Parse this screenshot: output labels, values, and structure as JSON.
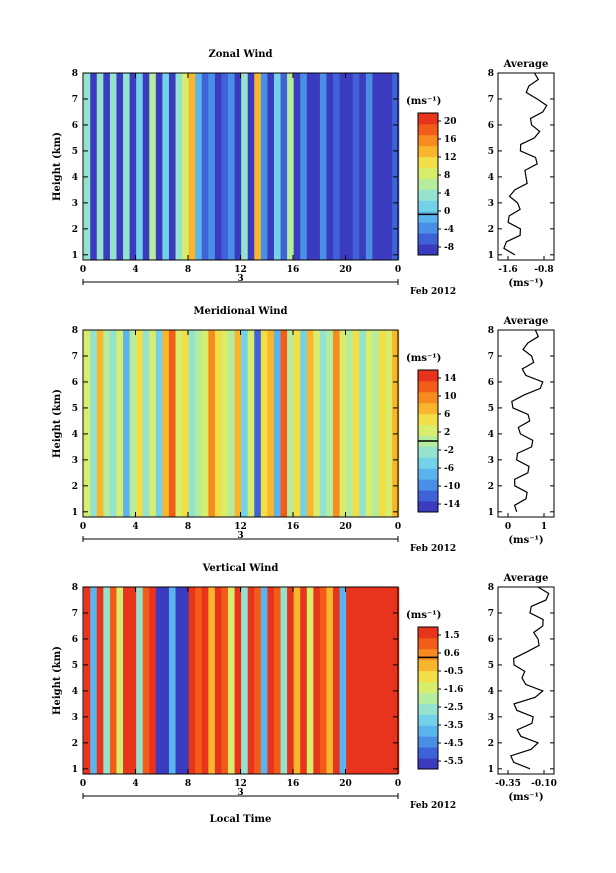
{
  "colorscale": [
    "#3b3bbf",
    "#3f62d8",
    "#4a8fe6",
    "#5ab4ee",
    "#73d2e8",
    "#93e3cf",
    "#b6ec9e",
    "#d9ed6c",
    "#f3de45",
    "#f9b62c",
    "#f88b1f",
    "#f35c18",
    "#e8341c"
  ],
  "date_label": "Feb 2012",
  "date_day": "3",
  "x_axis_label": "Local Time",
  "panels": [
    {
      "title": "Zonal Wind",
      "ylabel": "Height (km)",
      "unit": "(ms⁻¹)",
      "colorbar_ticks": [
        "20",
        "16",
        "12",
        "8",
        "4",
        "0",
        "-4",
        "-8"
      ],
      "x_ticks": [
        "0",
        "4",
        "8",
        "12",
        "16",
        "20",
        "0"
      ],
      "y_ticks": [
        "1",
        "2",
        "3",
        "4",
        "5",
        "6",
        "7",
        "8"
      ],
      "average": {
        "title": "Average",
        "xlabel": "(ms⁻¹)",
        "x_ticks": [
          "-1.6",
          "-0.8"
        ]
      }
    },
    {
      "title": "Meridional Wind",
      "ylabel": "Height (km)",
      "unit": "(ms⁻¹)",
      "colorbar_ticks": [
        "14",
        "10",
        "6",
        "2",
        "-2",
        "-6",
        "-10",
        "-14"
      ],
      "x_ticks": [
        "0",
        "4",
        "8",
        "12",
        "16",
        "20",
        "0"
      ],
      "y_ticks": [
        "1",
        "2",
        "3",
        "4",
        "5",
        "6",
        "7",
        "8"
      ],
      "average": {
        "title": "Average",
        "xlabel": "(ms⁻¹)",
        "x_ticks": [
          "0",
          "1"
        ]
      }
    },
    {
      "title": "Vertical Wind",
      "ylabel": "Height (km)",
      "unit": "(ms⁻¹)",
      "colorbar_ticks": [
        "1.5",
        "0.6",
        "-0.5",
        "-1.6",
        "-2.5",
        "-3.5",
        "-4.5",
        "-5.5"
      ],
      "x_ticks": [
        "0",
        "4",
        "8",
        "12",
        "16",
        "20",
        "0"
      ],
      "y_ticks": [
        "1",
        "2",
        "3",
        "4",
        "5",
        "6",
        "7",
        "8"
      ],
      "average": {
        "title": "Average",
        "xlabel": "(ms⁻¹)",
        "x_ticks": [
          "-0.35",
          "-0.10"
        ]
      }
    }
  ],
  "chart_data": [
    {
      "type": "heatmap",
      "title": "Zonal Wind",
      "ylabel": "Height (km)",
      "x_ticks": [
        "0",
        "4",
        "8",
        "12",
        "16",
        "20",
        "0"
      ],
      "ylim": [
        0.8,
        8
      ],
      "colorbar_label": "(ms⁻¹)",
      "colorbar_range": [
        -8,
        20
      ],
      "columns": [
        {
          "t": 0.3,
          "v": 4
        },
        {
          "t": 0.8,
          "v": -8
        },
        {
          "t": 1.3,
          "v": 4
        },
        {
          "t": 1.8,
          "v": -6
        },
        {
          "t": 2.3,
          "v": 4
        },
        {
          "t": 2.8,
          "v": -8
        },
        {
          "t": 3.3,
          "v": 4
        },
        {
          "t": 3.8,
          "v": -8
        },
        {
          "t": 4.3,
          "v": 2
        },
        {
          "t": 4.8,
          "v": -6
        },
        {
          "t": 5.3,
          "v": 6
        },
        {
          "t": 5.8,
          "v": -8
        },
        {
          "t": 6.3,
          "v": 2
        },
        {
          "t": 6.8,
          "v": -8
        },
        {
          "t": 7.3,
          "v": 4
        },
        {
          "t": 7.8,
          "v": 8
        },
        {
          "t": 8.3,
          "v": 12
        },
        {
          "t": 8.8,
          "v": 0
        },
        {
          "t": 9.3,
          "v": -4
        },
        {
          "t": 9.8,
          "v": -2
        },
        {
          "t": 10.3,
          "v": -6
        },
        {
          "t": 10.8,
          "v": -4
        },
        {
          "t": 11.3,
          "v": -2
        },
        {
          "t": 11.8,
          "v": -8
        },
        {
          "t": 12.3,
          "v": 4
        },
        {
          "t": 12.8,
          "v": -8
        },
        {
          "t": 13.3,
          "v": 12
        },
        {
          "t": 13.8,
          "v": -2
        },
        {
          "t": 14.3,
          "v": -8
        },
        {
          "t": 14.8,
          "v": 2
        },
        {
          "t": 15.3,
          "v": -4
        },
        {
          "t": 15.8,
          "v": 6
        },
        {
          "t": 16.3,
          "v": -8
        },
        {
          "t": 16.8,
          "v": -2
        },
        {
          "t": 17.3,
          "v": -6
        },
        {
          "t": 17.8,
          "v": -8
        },
        {
          "t": 18.3,
          "v": -2
        },
        {
          "t": 18.8,
          "v": -6
        },
        {
          "t": 19.3,
          "v": -4
        },
        {
          "t": 19.8,
          "v": -8
        },
        {
          "t": 20.3,
          "v": -6
        },
        {
          "t": 20.8,
          "v": -4
        },
        {
          "t": 21.3,
          "v": -8
        },
        {
          "t": 21.8,
          "v": -2
        },
        {
          "t": 22.3,
          "v": -6
        },
        {
          "t": 22.8,
          "v": -8
        },
        {
          "t": 23.3,
          "v": -6
        },
        {
          "t": 23.8,
          "v": -4
        }
      ],
      "average_profile": {
        "title": "Average",
        "xlabel": "(ms⁻¹)",
        "xlim": [
          -1.6,
          -0.6
        ],
        "heights": [
          1,
          1.5,
          2,
          2.5,
          3,
          3.5,
          4,
          4.5,
          5,
          5.5,
          6,
          6.5,
          7,
          7.5,
          8
        ],
        "values": [
          -1.3,
          -1.45,
          -1.2,
          -1.4,
          -1.25,
          -1.3,
          -1.1,
          -0.9,
          -1.2,
          -0.95,
          -1.0,
          -0.8,
          -0.9,
          -1.05,
          -0.95
        ]
      }
    },
    {
      "type": "heatmap",
      "title": "Meridional Wind",
      "ylabel": "Height (km)",
      "x_ticks": [
        "0",
        "4",
        "8",
        "12",
        "16",
        "20",
        "0"
      ],
      "ylim": [
        0.8,
        8
      ],
      "colorbar_label": "(ms⁻¹)",
      "colorbar_range": [
        -14,
        14
      ],
      "columns": [
        {
          "t": 0.3,
          "v": 2
        },
        {
          "t": 0.8,
          "v": -2
        },
        {
          "t": 1.3,
          "v": 6
        },
        {
          "t": 1.8,
          "v": 0
        },
        {
          "t": 2.3,
          "v": -2
        },
        {
          "t": 2.8,
          "v": 2
        },
        {
          "t": 3.3,
          "v": -6
        },
        {
          "t": 3.8,
          "v": 0
        },
        {
          "t": 4.3,
          "v": 4
        },
        {
          "t": 4.8,
          "v": -2
        },
        {
          "t": 5.3,
          "v": 2
        },
        {
          "t": 5.8,
          "v": -4
        },
        {
          "t": 6.3,
          "v": 6
        },
        {
          "t": 6.8,
          "v": 10
        },
        {
          "t": 7.3,
          "v": 2
        },
        {
          "t": 7.8,
          "v": 4
        },
        {
          "t": 8.3,
          "v": -2
        },
        {
          "t": 8.8,
          "v": 0
        },
        {
          "t": 9.3,
          "v": 2
        },
        {
          "t": 9.8,
          "v": 8
        },
        {
          "t": 10.3,
          "v": 4
        },
        {
          "t": 10.8,
          "v": 2
        },
        {
          "t": 11.3,
          "v": 0
        },
        {
          "t": 11.8,
          "v": 6
        },
        {
          "t": 12.3,
          "v": -4
        },
        {
          "t": 12.8,
          "v": 2
        },
        {
          "t": 13.3,
          "v": -10
        },
        {
          "t": 13.8,
          "v": 4
        },
        {
          "t": 14.3,
          "v": 6
        },
        {
          "t": 14.8,
          "v": -6
        },
        {
          "t": 15.3,
          "v": 10
        },
        {
          "t": 15.8,
          "v": 0
        },
        {
          "t": 16.3,
          "v": 4
        },
        {
          "t": 16.8,
          "v": -4
        },
        {
          "t": 17.3,
          "v": 6
        },
        {
          "t": 17.8,
          "v": 2
        },
        {
          "t": 18.3,
          "v": -2
        },
        {
          "t": 18.8,
          "v": 0
        },
        {
          "t": 19.3,
          "v": 8
        },
        {
          "t": 19.8,
          "v": 2
        },
        {
          "t": 20.3,
          "v": 0
        },
        {
          "t": 20.8,
          "v": 4
        },
        {
          "t": 21.3,
          "v": -2
        },
        {
          "t": 21.8,
          "v": 2
        },
        {
          "t": 22.3,
          "v": 0
        },
        {
          "t": 22.8,
          "v": 4
        },
        {
          "t": 23.3,
          "v": 2
        },
        {
          "t": 23.8,
          "v": 6
        }
      ],
      "average_profile": {
        "title": "Average",
        "xlabel": "(ms⁻¹)",
        "xlim": [
          -0.3,
          1.2
        ],
        "heights": [
          1,
          1.5,
          2,
          2.5,
          3,
          3.5,
          4,
          4.5,
          5,
          5.5,
          6,
          6.5,
          7,
          7.5,
          8
        ],
        "values": [
          0.2,
          0.45,
          0.15,
          0.5,
          0.2,
          0.6,
          0.3,
          0.55,
          0.1,
          0.4,
          0.9,
          0.35,
          0.6,
          0.5,
          0.7
        ]
      }
    },
    {
      "type": "heatmap",
      "title": "Vertical Wind",
      "ylabel": "Height (km)",
      "x_ticks": [
        "0",
        "4",
        "8",
        "12",
        "16",
        "20",
        "0"
      ],
      "ylim": [
        0.8,
        8
      ],
      "colorbar_label": "(ms⁻¹)",
      "colorbar_range": [
        -5.5,
        1.5
      ],
      "columns": [
        {
          "t": 0.3,
          "v": 1.5
        },
        {
          "t": 0.8,
          "v": -3.5
        },
        {
          "t": 1.3,
          "v": 1.0
        },
        {
          "t": 1.8,
          "v": -2.5
        },
        {
          "t": 2.3,
          "v": 0.6
        },
        {
          "t": 2.8,
          "v": -1.6
        },
        {
          "t": 3.3,
          "v": 1.5
        },
        {
          "t": 3.8,
          "v": 1.0
        },
        {
          "t": 4.3,
          "v": -2.5
        },
        {
          "t": 4.8,
          "v": 0.6
        },
        {
          "t": 5.3,
          "v": 1.5
        },
        {
          "t": 5.8,
          "v": -5.5
        },
        {
          "t": 6.3,
          "v": -5.5
        },
        {
          "t": 6.8,
          "v": -3.5
        },
        {
          "t": 7.3,
          "v": -5.5
        },
        {
          "t": 7.8,
          "v": -5.5
        },
        {
          "t": 8.3,
          "v": 1.5
        },
        {
          "t": 8.8,
          "v": 0.6
        },
        {
          "t": 9.3,
          "v": 1.0
        },
        {
          "t": 9.8,
          "v": -0.5
        },
        {
          "t": 10.3,
          "v": 1.5
        },
        {
          "t": 10.8,
          "v": 0.6
        },
        {
          "t": 11.3,
          "v": -1.6
        },
        {
          "t": 11.8,
          "v": 1.5
        },
        {
          "t": 12.3,
          "v": -2.5
        },
        {
          "t": 12.8,
          "v": 1.5
        },
        {
          "t": 13.3,
          "v": 0.6
        },
        {
          "t": 13.8,
          "v": -3.5
        },
        {
          "t": 14.3,
          "v": 1.5
        },
        {
          "t": 14.8,
          "v": 0.6
        },
        {
          "t": 15.3,
          "v": -2.5
        },
        {
          "t": 15.8,
          "v": 1.5
        },
        {
          "t": 16.3,
          "v": -0.5
        },
        {
          "t": 16.8,
          "v": 1.0
        },
        {
          "t": 17.3,
          "v": -1.6
        },
        {
          "t": 17.8,
          "v": 1.5
        },
        {
          "t": 18.3,
          "v": 0.6
        },
        {
          "t": 18.8,
          "v": -0.5
        },
        {
          "t": 19.3,
          "v": 1.5
        },
        {
          "t": 19.8,
          "v": -3.5
        },
        {
          "t": 20.3,
          "v": 1.0
        },
        {
          "t": 20.8,
          "v": 1.5
        },
        {
          "t": 21.3,
          "v": 1.5
        },
        {
          "t": 21.8,
          "v": 1.5
        },
        {
          "t": 22.3,
          "v": 1.5
        },
        {
          "t": 22.8,
          "v": 1.5
        },
        {
          "t": 23.3,
          "v": 1.5
        },
        {
          "t": 23.8,
          "v": 1.5
        }
      ],
      "average_profile": {
        "title": "Average",
        "xlabel": "(ms⁻¹)",
        "xlim": [
          -0.4,
          -0.05
        ],
        "heights": [
          1,
          1.5,
          2,
          2.5,
          3,
          3.5,
          4,
          4.5,
          5,
          5.5,
          6,
          6.5,
          7,
          7.5,
          8
        ],
        "values": [
          -0.2,
          -0.32,
          -0.15,
          -0.28,
          -0.18,
          -0.3,
          -0.12,
          -0.25,
          -0.3,
          -0.22,
          -0.15,
          -0.12,
          -0.2,
          -0.1,
          -0.15
        ]
      }
    }
  ]
}
